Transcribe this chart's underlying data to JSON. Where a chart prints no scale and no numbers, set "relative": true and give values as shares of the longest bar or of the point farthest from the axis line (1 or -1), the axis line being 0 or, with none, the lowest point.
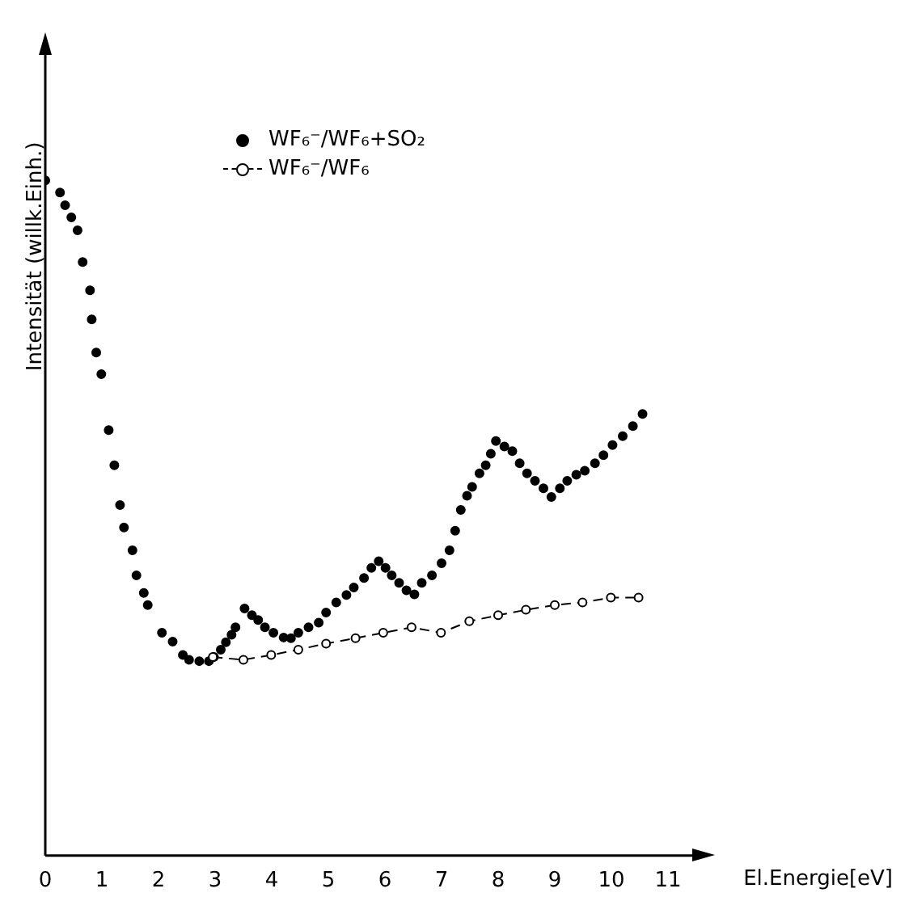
{
  "chart_data": {
    "type": "scatter",
    "relative": true,
    "xlabel": "El.Energie[eV]",
    "ylabel": "Intensität (willk.Einh.)",
    "xlim": [
      0,
      11.6
    ],
    "xticks": [
      0,
      1,
      2,
      3,
      4,
      5,
      6,
      7,
      8,
      9,
      10,
      11
    ],
    "grid": false,
    "legend": "top left",
    "tick_labels": "x",
    "series": [
      {
        "name": "WF₆⁻/WF₆+SO₂",
        "marker": "circle",
        "color": "#000000",
        "x": [
          0,
          0.26,
          0.35,
          0.46,
          0.57,
          0.66,
          0.79,
          0.82,
          0.9,
          0.99,
          1.12,
          1.22,
          1.32,
          1.39,
          1.54,
          1.61,
          1.74,
          1.81,
          2.06,
          2.25,
          2.43,
          2.54,
          2.72,
          2.89,
          2.98,
          3.1,
          3.19,
          3.29,
          3.36,
          3.52,
          3.65,
          3.76,
          3.88,
          4.03,
          4.21,
          4.34,
          4.47,
          4.65,
          4.83,
          4.96,
          5.14,
          5.32,
          5.45,
          5.63,
          5.76,
          5.89,
          6.01,
          6.12,
          6.25,
          6.38,
          6.52,
          6.65,
          6.83,
          7,
          7.14,
          7.24,
          7.34,
          7.45,
          7.54,
          7.67,
          7.78,
          7.87,
          7.96,
          8.11,
          8.25,
          8.38,
          8.51,
          8.65,
          8.8,
          8.94,
          9.09,
          9.22,
          9.38,
          9.53,
          9.71,
          9.86,
          10.02,
          10.2,
          10.38,
          10.55
        ],
        "values": [
          1,
          0.982,
          0.963,
          0.945,
          0.926,
          0.879,
          0.837,
          0.794,
          0.745,
          0.713,
          0.63,
          0.578,
          0.519,
          0.486,
          0.452,
          0.415,
          0.389,
          0.371,
          0.33,
          0.317,
          0.297,
          0.29,
          0.288,
          0.288,
          0.294,
          0.305,
          0.316,
          0.327,
          0.338,
          0.366,
          0.356,
          0.349,
          0.338,
          0.33,
          0.323,
          0.322,
          0.33,
          0.338,
          0.345,
          0.36,
          0.375,
          0.386,
          0.397,
          0.411,
          0.426,
          0.436,
          0.426,
          0.415,
          0.404,
          0.393,
          0.387,
          0.404,
          0.415,
          0.433,
          0.452,
          0.481,
          0.512,
          0.533,
          0.546,
          0.566,
          0.578,
          0.595,
          0.614,
          0.606,
          0.599,
          0.581,
          0.566,
          0.555,
          0.544,
          0.531,
          0.544,
          0.555,
          0.564,
          0.57,
          0.581,
          0.593,
          0.608,
          0.621,
          0.636,
          0.654
        ]
      },
      {
        "name": "WF₆⁻/WF₆",
        "type": "line",
        "marker": "circle",
        "line_style": "dashed",
        "color": "#000000",
        "x": [
          2.96,
          3.5,
          3.99,
          4.47,
          4.96,
          5.48,
          5.97,
          6.47,
          6.99,
          7.49,
          8,
          8.49,
          9,
          9.49,
          9.99,
          10.48
        ],
        "values": [
          0.294,
          0.29,
          0.297,
          0.305,
          0.314,
          0.322,
          0.33,
          0.338,
          0.33,
          0.347,
          0.356,
          0.364,
          0.371,
          0.375,
          0.382,
          0.382
        ]
      }
    ]
  }
}
